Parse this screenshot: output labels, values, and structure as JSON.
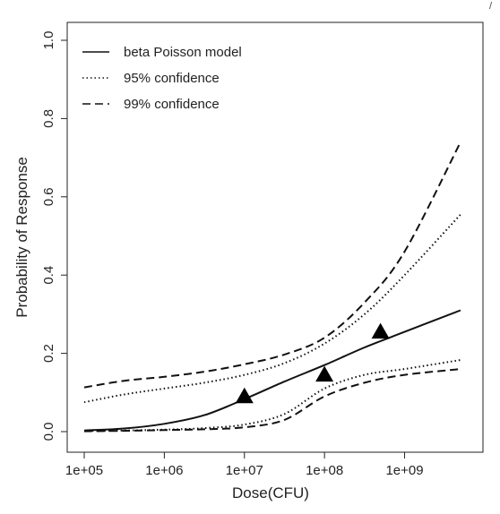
{
  "corner_mark": "/",
  "chart_data": {
    "type": "line",
    "title": "",
    "xlabel": "Dose(CFU)",
    "ylabel": "Probability of Response",
    "x_scale": "log10",
    "xlim": [
      100000,
      5000000000
    ],
    "ylim": [
      0,
      1
    ],
    "x_ticks": [
      100000,
      1000000,
      10000000,
      100000000,
      1000000000
    ],
    "x_tick_labels": [
      "1e+05",
      "1e+06",
      "1e+07",
      "1e+08",
      "1e+09"
    ],
    "y_ticks": [
      0,
      0.2,
      0.4,
      0.6,
      0.8,
      1.0
    ],
    "y_tick_labels": [
      "0.0",
      "0.2",
      "0.4",
      "0.6",
      "0.8",
      "1.0"
    ],
    "legend_position": "top-left",
    "grid": false,
    "series": [
      {
        "name": "beta Poisson model",
        "style": "solid",
        "x": [
          100000,
          316228,
          1000000,
          3162278,
          10000000,
          31622777,
          100000000,
          316227766,
          1000000000,
          5000000000
        ],
        "values": [
          0.003,
          0.008,
          0.02,
          0.042,
          0.083,
          0.128,
          0.17,
          0.215,
          0.255,
          0.31
        ]
      },
      {
        "name": "95% confidence",
        "style": "dotted",
        "x": [
          100000,
          316228,
          1000000,
          3162278,
          10000000,
          31622777,
          100000000,
          316227766,
          1000000000,
          5000000000
        ],
        "values": [
          0.075,
          0.095,
          0.11,
          0.125,
          0.145,
          0.175,
          0.225,
          0.3,
          0.4,
          0.555
        ]
      },
      {
        "name": "95% confidence lower",
        "style": "dotted",
        "x": [
          100000,
          316228,
          1000000,
          3162278,
          10000000,
          31622777,
          100000000,
          316227766,
          1000000000,
          5000000000
        ],
        "values": [
          0.002,
          0.003,
          0.005,
          0.009,
          0.018,
          0.045,
          0.11,
          0.145,
          0.16,
          0.183
        ]
      },
      {
        "name": "99% confidence",
        "style": "dashed",
        "x": [
          100000,
          316228,
          1000000,
          3162278,
          10000000,
          31622777,
          100000000,
          316227766,
          1000000000,
          5000000000
        ],
        "values": [
          0.113,
          0.13,
          0.14,
          0.153,
          0.172,
          0.197,
          0.24,
          0.33,
          0.46,
          0.74
        ]
      },
      {
        "name": "99% confidence lower",
        "style": "dashed",
        "x": [
          100000,
          316228,
          1000000,
          3162278,
          10000000,
          31622777,
          100000000,
          316227766,
          1000000000,
          5000000000
        ],
        "values": [
          0.001,
          0.002,
          0.004,
          0.006,
          0.011,
          0.03,
          0.09,
          0.125,
          0.145,
          0.16
        ]
      }
    ],
    "observations": {
      "marker": "triangle",
      "x": [
        10000000,
        100000000,
        500000000
      ],
      "values": [
        0.09,
        0.145,
        0.255
      ]
    },
    "legend": [
      {
        "label": "beta Poisson model",
        "style": "solid"
      },
      {
        "label": "95% confidence",
        "style": "dotted"
      },
      {
        "label": "99% confidence",
        "style": "dashed"
      }
    ]
  }
}
